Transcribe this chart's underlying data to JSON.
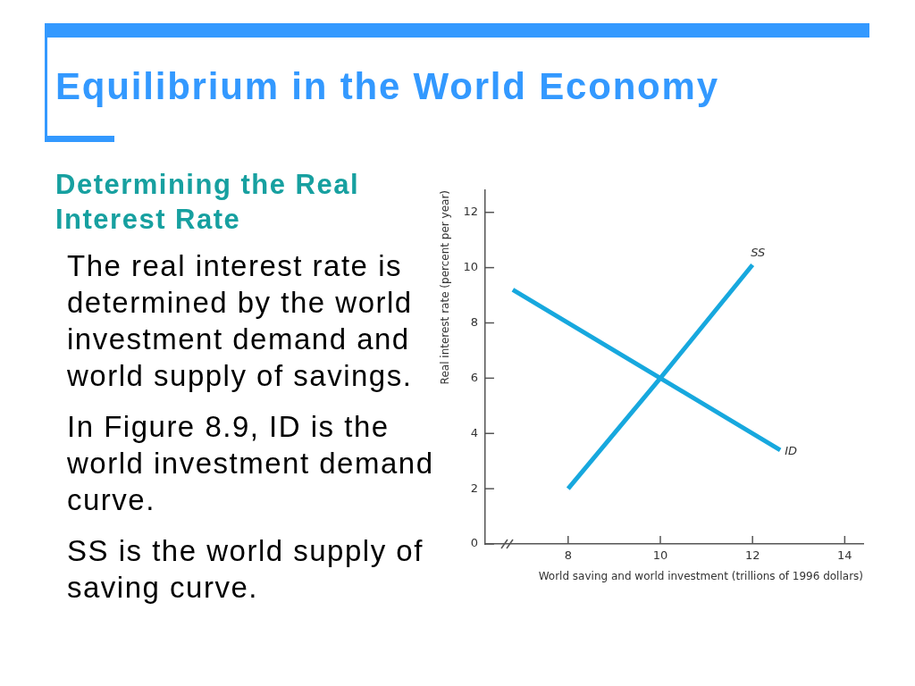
{
  "chart_data": {
    "type": "line",
    "title": "Equilibrium in the World Economy",
    "subtitle": "Determining the Real Interest Rate",
    "xlabel": "World saving and world investment (trillions of 1996 dollars)",
    "ylabel": "Real interest rate (percent per year)",
    "annotations": [
      "The real interest rate is determined by the world investment demand and world supply of savings.",
      "In Figure 8.9, ID is the world investment demand curve.",
      "SS is the world supply of saving curve."
    ],
    "series": [
      {
        "name": "ID",
        "color": "#17a8de",
        "x": [
          6.8,
          10,
          12.6
        ],
        "values": [
          9.2,
          6,
          3.4
        ]
      },
      {
        "name": "SS",
        "color": "#17a8de",
        "x": [
          8,
          10,
          12
        ],
        "values": [
          2,
          6,
          10.1
        ]
      }
    ],
    "xlim": [
      6.2,
      14.4
    ],
    "xticks": [
      8,
      10,
      12,
      14
    ],
    "ylim": [
      0,
      12.8
    ],
    "yticks": [
      0,
      2,
      4,
      6,
      8,
      10,
      12
    ],
    "grid": false,
    "legend": false,
    "marker": "none",
    "line_style": "solid"
  }
}
